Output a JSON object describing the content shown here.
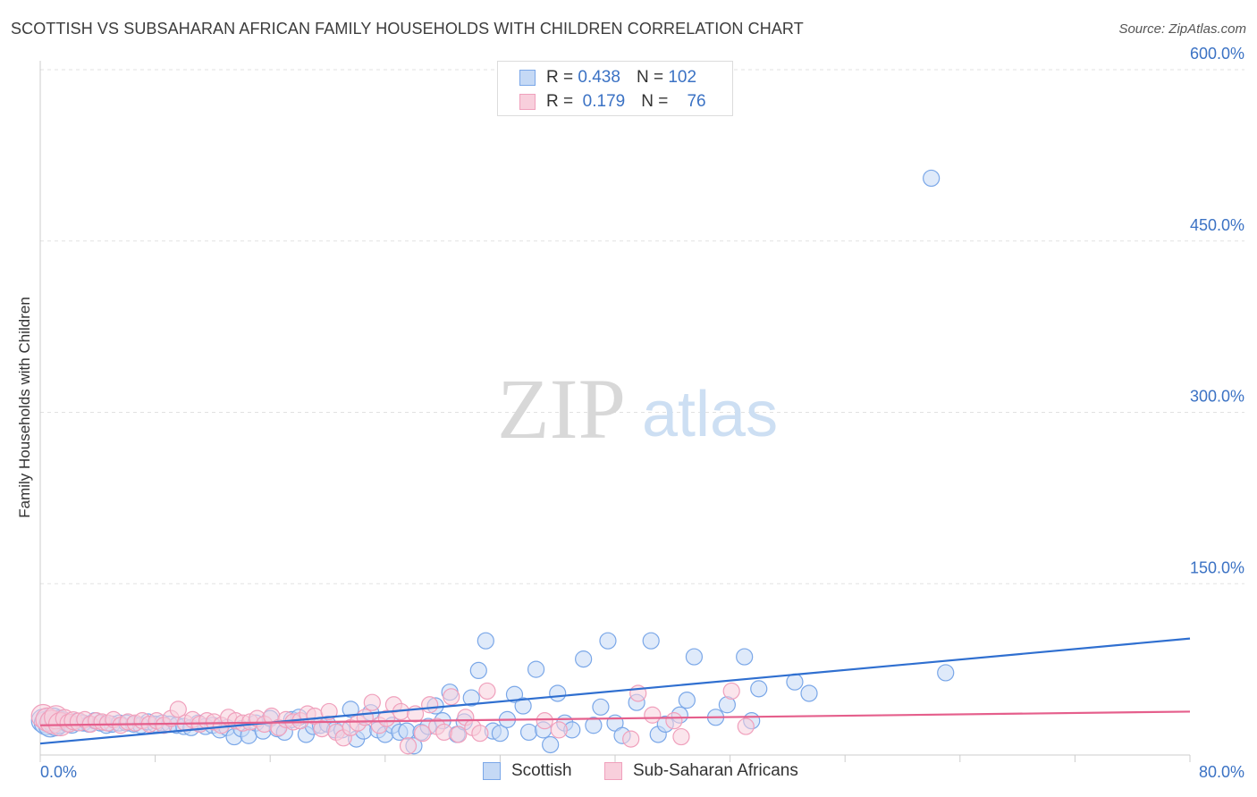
{
  "chart_data": {
    "type": "scatter",
    "title": "SCOTTISH VS SUBSAHARAN AFRICAN FAMILY HOUSEHOLDS WITH CHILDREN CORRELATION CHART",
    "source": "Source: ZipAtlas.com",
    "xlabel": "",
    "ylabel": "Family Households with Children",
    "xlim": [
      0,
      80
    ],
    "ylim": [
      0,
      600
    ],
    "x_ticks": [
      "0.0%",
      "80.0%"
    ],
    "y_ticks": [
      {
        "value": 150,
        "label": "150.0%"
      },
      {
        "value": 300,
        "label": "300.0%"
      },
      {
        "value": 450,
        "label": "450.0%"
      },
      {
        "value": 600,
        "label": "600.0%"
      }
    ],
    "watermark": {
      "zip": "ZIP",
      "atlas": "atlas"
    },
    "stats": [
      {
        "r_label": "R =",
        "r_value": "0.438",
        "n_label": "N =",
        "n_value": "102"
      },
      {
        "r_label": "R =",
        "r_value": " 0.179",
        "n_label": "N =",
        "n_value": "76"
      }
    ],
    "series": [
      {
        "name": "Scottish",
        "color": "#7aa7e8",
        "fill": "#c5d9f5",
        "line_color": "#2f6fd0",
        "trend": [
          [
            0,
            10
          ],
          [
            80,
            102
          ]
        ],
        "points": [
          [
            0.2,
            30
          ],
          [
            0.4,
            28
          ],
          [
            0.7,
            26
          ],
          [
            0.9,
            31
          ],
          [
            1.1,
            27
          ],
          [
            1.3,
            29
          ],
          [
            1.6,
            30
          ],
          [
            1.9,
            28
          ],
          [
            2.2,
            27
          ],
          [
            2.6,
            29
          ],
          [
            3.0,
            28
          ],
          [
            3.4,
            27
          ],
          [
            3.8,
            30
          ],
          [
            4.2,
            28
          ],
          [
            4.6,
            26
          ],
          [
            5.0,
            27
          ],
          [
            5.5,
            28
          ],
          [
            6.0,
            28
          ],
          [
            6.5,
            27
          ],
          [
            7.0,
            26
          ],
          [
            7.5,
            29
          ],
          [
            8.0,
            27
          ],
          [
            8.5,
            28
          ],
          [
            9.0,
            27
          ],
          [
            9.5,
            26
          ],
          [
            10.0,
            25
          ],
          [
            10.5,
            24
          ],
          [
            11.0,
            28
          ],
          [
            11.5,
            25
          ],
          [
            12.0,
            26
          ],
          [
            12.5,
            22
          ],
          [
            13.0,
            24
          ],
          [
            13.5,
            16
          ],
          [
            14.0,
            23
          ],
          [
            14.5,
            17
          ],
          [
            15.0,
            28
          ],
          [
            15.5,
            21
          ],
          [
            16.0,
            32
          ],
          [
            16.5,
            23
          ],
          [
            17.0,
            20
          ],
          [
            17.5,
            31
          ],
          [
            18.0,
            33
          ],
          [
            18.5,
            18
          ],
          [
            19.0,
            25
          ],
          [
            19.5,
            26
          ],
          [
            20.0,
            27
          ],
          [
            20.5,
            22
          ],
          [
            21.0,
            22
          ],
          [
            21.6,
            40
          ],
          [
            22.0,
            14
          ],
          [
            22.5,
            21
          ],
          [
            23.0,
            37
          ],
          [
            23.5,
            22
          ],
          [
            24.0,
            18
          ],
          [
            24.5,
            26
          ],
          [
            25.0,
            20
          ],
          [
            25.5,
            21
          ],
          [
            26.0,
            8
          ],
          [
            26.5,
            20
          ],
          [
            27.0,
            25
          ],
          [
            27.5,
            43
          ],
          [
            28.0,
            30
          ],
          [
            28.5,
            55
          ],
          [
            29.0,
            18
          ],
          [
            29.5,
            29
          ],
          [
            30.0,
            50
          ],
          [
            30.5,
            74
          ],
          [
            31.0,
            100
          ],
          [
            31.5,
            21
          ],
          [
            32.0,
            19
          ],
          [
            32.5,
            31
          ],
          [
            33.0,
            53
          ],
          [
            33.6,
            43
          ],
          [
            34.0,
            20
          ],
          [
            34.5,
            75
          ],
          [
            35.0,
            22
          ],
          [
            35.5,
            9
          ],
          [
            36.0,
            54
          ],
          [
            36.5,
            28
          ],
          [
            37.0,
            22
          ],
          [
            37.8,
            84
          ],
          [
            38.5,
            26
          ],
          [
            39.0,
            42
          ],
          [
            39.5,
            100
          ],
          [
            40.0,
            28
          ],
          [
            40.5,
            17
          ],
          [
            41.5,
            46
          ],
          [
            42.5,
            100
          ],
          [
            43.0,
            18
          ],
          [
            43.5,
            27
          ],
          [
            44.5,
            35
          ],
          [
            45.0,
            48
          ],
          [
            45.5,
            86
          ],
          [
            47.0,
            33
          ],
          [
            47.8,
            44
          ],
          [
            49.0,
            86
          ],
          [
            49.5,
            30
          ],
          [
            50.0,
            58
          ],
          [
            52.5,
            64
          ],
          [
            53.5,
            54
          ],
          [
            62.0,
            505
          ],
          [
            63.0,
            72
          ]
        ]
      },
      {
        "name": "Sub-Saharan Africans",
        "color": "#f0a0bc",
        "fill": "#f8cfdc",
        "line_color": "#e55f8c",
        "trend": [
          [
            0,
            26
          ],
          [
            80,
            38
          ]
        ],
        "points": [
          [
            0.2,
            34
          ],
          [
            0.5,
            31
          ],
          [
            0.8,
            29
          ],
          [
            1.1,
            33
          ],
          [
            1.4,
            27
          ],
          [
            1.7,
            32
          ],
          [
            2.0,
            28
          ],
          [
            2.3,
            30
          ],
          [
            2.7,
            29
          ],
          [
            3.1,
            31
          ],
          [
            3.5,
            27
          ],
          [
            3.9,
            30
          ],
          [
            4.3,
            29
          ],
          [
            4.7,
            28
          ],
          [
            5.1,
            31
          ],
          [
            5.6,
            26
          ],
          [
            6.1,
            29
          ],
          [
            6.6,
            28
          ],
          [
            7.1,
            30
          ],
          [
            7.6,
            27
          ],
          [
            8.1,
            30
          ],
          [
            8.6,
            26
          ],
          [
            9.1,
            32
          ],
          [
            9.6,
            40
          ],
          [
            10.1,
            28
          ],
          [
            10.6,
            31
          ],
          [
            11.1,
            27
          ],
          [
            11.6,
            30
          ],
          [
            12.1,
            29
          ],
          [
            12.6,
            26
          ],
          [
            13.1,
            33
          ],
          [
            13.6,
            30
          ],
          [
            14.1,
            28
          ],
          [
            14.6,
            29
          ],
          [
            15.1,
            32
          ],
          [
            15.6,
            27
          ],
          [
            16.1,
            34
          ],
          [
            16.6,
            24
          ],
          [
            17.1,
            31
          ],
          [
            17.6,
            29
          ],
          [
            18.1,
            30
          ],
          [
            18.6,
            36
          ],
          [
            19.1,
            34
          ],
          [
            19.6,
            23
          ],
          [
            20.1,
            38
          ],
          [
            20.6,
            20
          ],
          [
            21.1,
            15
          ],
          [
            21.6,
            24
          ],
          [
            22.1,
            28
          ],
          [
            22.6,
            33
          ],
          [
            23.1,
            46
          ],
          [
            23.6,
            26
          ],
          [
            24.1,
            32
          ],
          [
            24.6,
            44
          ],
          [
            25.1,
            38
          ],
          [
            25.6,
            8
          ],
          [
            26.1,
            36
          ],
          [
            26.6,
            19
          ],
          [
            27.1,
            44
          ],
          [
            27.6,
            25
          ],
          [
            28.1,
            20
          ],
          [
            28.6,
            51
          ],
          [
            29.1,
            18
          ],
          [
            29.6,
            33
          ],
          [
            30.1,
            24
          ],
          [
            30.6,
            19
          ],
          [
            31.1,
            56
          ],
          [
            35.1,
            30
          ],
          [
            36.1,
            22
          ],
          [
            41.1,
            14
          ],
          [
            41.6,
            54
          ],
          [
            42.6,
            35
          ],
          [
            44.1,
            30
          ],
          [
            44.6,
            16
          ],
          [
            48.1,
            56
          ],
          [
            49.1,
            25
          ]
        ]
      }
    ]
  }
}
